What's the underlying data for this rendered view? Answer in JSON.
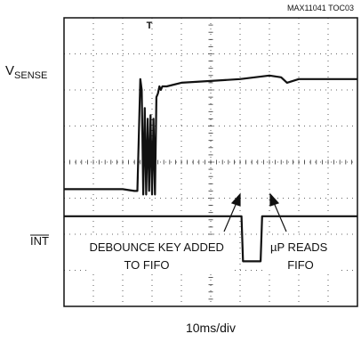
{
  "figure_id": "MAX11041 TOC03",
  "x_scale_label": "10ms/div",
  "trigger_marker": "T",
  "channel_labels": {
    "vsense_main": "V",
    "vsense_sub": "SENSE",
    "int": "INT"
  },
  "annotations": {
    "debounce": [
      "DEBOUNCE KEY ADDED",
      "TO FIFO"
    ],
    "up_reads": [
      "µP READS",
      "FIFO"
    ]
  },
  "colors": {
    "trace": "#111111",
    "grid": "#333333",
    "frame": "#111111",
    "background": "#ffffff"
  },
  "chart_data": {
    "type": "line",
    "title": "",
    "xlabel": "10ms/div",
    "ylabel": "",
    "grid": true,
    "divisions": {
      "x": 10,
      "y": 8
    },
    "xlim": [
      0,
      100
    ],
    "series": [
      {
        "name": "VSENSE",
        "x_ms": [
          0,
          10,
          20,
          24,
          25,
          26,
          26.5,
          27,
          27.5,
          28,
          28.5,
          29,
          29.5,
          30,
          30.5,
          31,
          31.5,
          32,
          32.5,
          33,
          33.5,
          34,
          35,
          40,
          50,
          60,
          70,
          74,
          76,
          80,
          90,
          100
        ],
        "y_div": [
          3.25,
          3.25,
          3.25,
          3.2,
          3.2,
          6.3,
          6.0,
          3.1,
          5.5,
          3.1,
          5.2,
          3.2,
          5.3,
          3.1,
          5.2,
          3.1,
          5.8,
          5.9,
          6.1,
          6.0,
          6.1,
          6.1,
          6.1,
          6.2,
          6.25,
          6.3,
          6.4,
          6.35,
          6.2,
          6.3,
          6.3,
          6.3
        ]
      },
      {
        "name": "INT",
        "x_ms": [
          0,
          60.5,
          61,
          67,
          67.5,
          100
        ],
        "y_div": [
          2.5,
          2.5,
          1.25,
          1.25,
          2.5,
          2.5
        ]
      }
    ]
  }
}
